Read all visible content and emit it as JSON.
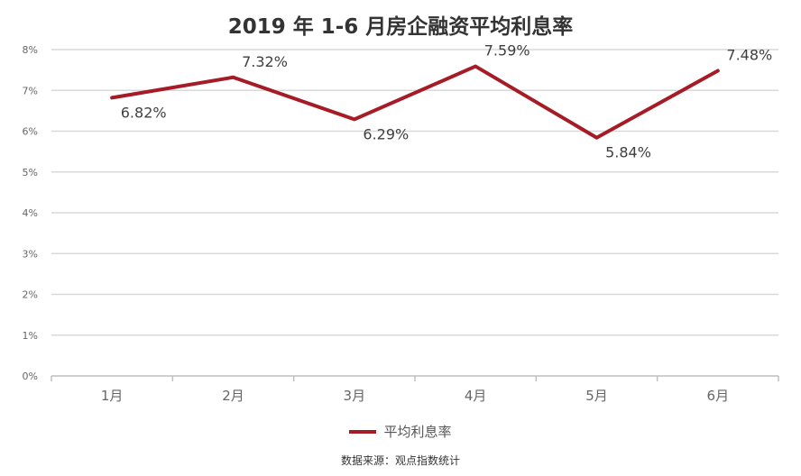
{
  "title": "2019 年 1-6 月房企融资平均利息率",
  "source": "数据来源：观点指数统计",
  "chart_data": {
    "type": "line",
    "categories": [
      "1月",
      "2月",
      "3月",
      "4月",
      "5月",
      "6月"
    ],
    "series": [
      {
        "name": "平均利息率",
        "values": [
          6.82,
          7.32,
          6.29,
          7.59,
          5.84,
          7.48
        ],
        "color": "#a61c26"
      }
    ],
    "data_labels": [
      "6.82%",
      "7.32%",
      "6.29%",
      "7.59%",
      "5.84%",
      "7.48%"
    ],
    "yticks": [
      "0%",
      "1%",
      "2%",
      "3%",
      "4%",
      "5%",
      "6%",
      "7%",
      "8%"
    ],
    "ylim": [
      0,
      8
    ],
    "grid": true,
    "legend_position": "bottom"
  }
}
